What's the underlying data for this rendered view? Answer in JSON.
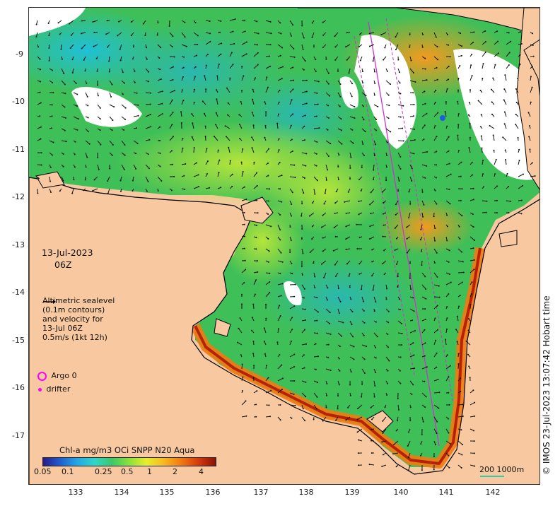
{
  "map": {
    "date": "13-Jul-2023",
    "time": "06Z",
    "legend_lines": [
      "Altimetric sealevel",
      "(0.1m contours)",
      "and velocity for",
      "13-Jul 06Z",
      "0.5m/s (1kt 12h)"
    ],
    "argo_label": "Argo 0",
    "drifter_label": "drifter",
    "colorbar_title": "Chl-a mg/m3 OCi SNPP N20 Aqua",
    "colorbar_ticks": [
      "0.05",
      "0.1",
      "0.25",
      "0.5",
      "1",
      "2",
      "4"
    ],
    "scale_bar": "200  1000m",
    "credit": "© IMOS 23-Jul-2023 13:07:42 Hobart time",
    "lat_ticks": [
      "-9",
      "-10",
      "-11",
      "-12",
      "-13",
      "-14",
      "-15",
      "-16",
      "-17"
    ],
    "lon_ticks": [
      "133",
      "134",
      "135",
      "136",
      "137",
      "138",
      "139",
      "140",
      "141",
      "142"
    ],
    "colors": {
      "land": "#f8c9a0",
      "argo": "#ff00ff",
      "track": "#cc33cc"
    }
  }
}
